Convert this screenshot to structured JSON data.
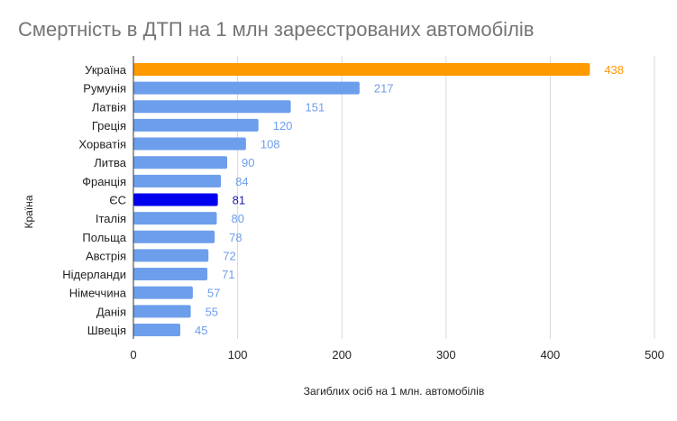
{
  "chart_data": {
    "type": "bar",
    "orientation": "horizontal",
    "title": "Смертність в ДТП на 1 млн зареєстрованих автомобілів",
    "xlabel": "Загиблих осіб на 1 млн. автомобілів",
    "ylabel": "Країна",
    "xlim": [
      0,
      500
    ],
    "xticks": [
      "0",
      "100",
      "200",
      "300",
      "400",
      "500"
    ],
    "grid": true,
    "legend": "none",
    "categories": [
      "Україна",
      "Румунія",
      "Латвія",
      "Греція",
      "Хорватія",
      "Литва",
      "Франція",
      "ЄС",
      "Італія",
      "Польща",
      "Австрія",
      "Нідерланди",
      "Німеччина",
      "Данія",
      "Швеція"
    ],
    "values": [
      438,
      217,
      151,
      120,
      108,
      90,
      84,
      81,
      80,
      78,
      72,
      71,
      57,
      55,
      45
    ],
    "bar_colors": [
      "#ff9900",
      "#6d9eeb",
      "#6d9eeb",
      "#6d9eeb",
      "#6d9eeb",
      "#6d9eeb",
      "#6d9eeb",
      "#0000ee",
      "#6d9eeb",
      "#6d9eeb",
      "#6d9eeb",
      "#6d9eeb",
      "#6d9eeb",
      "#6d9eeb",
      "#6d9eeb"
    ],
    "label_colors": [
      "#ff9900",
      "#6d9eeb",
      "#6d9eeb",
      "#6d9eeb",
      "#6d9eeb",
      "#6d9eeb",
      "#6d9eeb",
      "#1a1aa6",
      "#6d9eeb",
      "#6d9eeb",
      "#6d9eeb",
      "#6d9eeb",
      "#6d9eeb",
      "#6d9eeb",
      "#6d9eeb"
    ]
  }
}
